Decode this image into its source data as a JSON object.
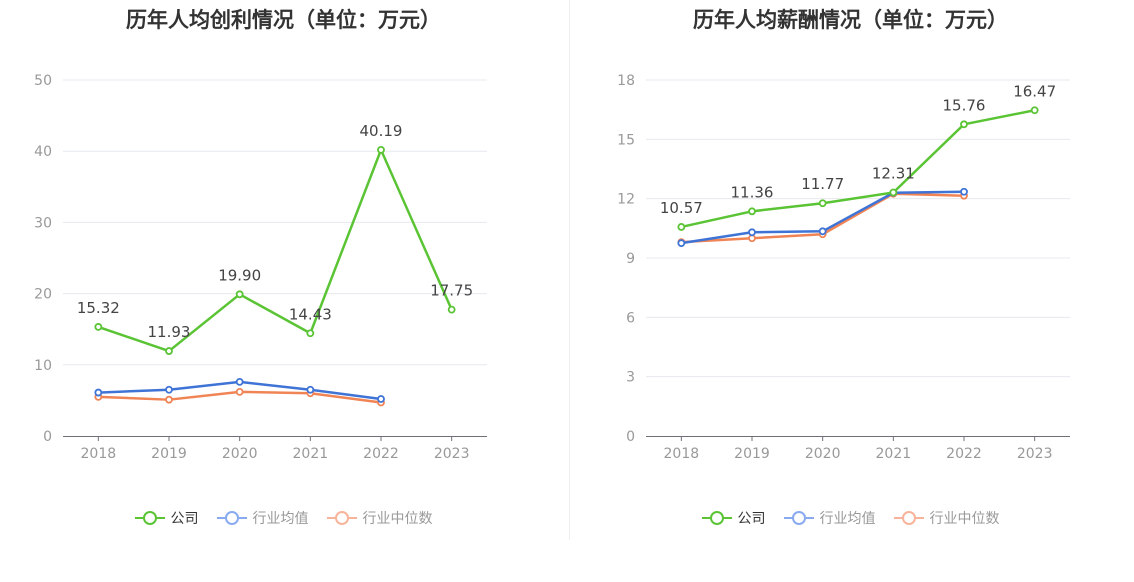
{
  "chart_data": [
    {
      "type": "line",
      "title": "历年人均创利情况（单位：万元）",
      "categories": [
        "2018",
        "2019",
        "2020",
        "2021",
        "2022",
        "2023"
      ],
      "ylim": [
        0,
        50
      ],
      "yticks": [
        0,
        10,
        20,
        30,
        40,
        50
      ],
      "series": [
        {
          "name": "公司",
          "color": "#5ac435",
          "values": [
            15.32,
            11.93,
            19.9,
            14.43,
            40.19,
            17.75
          ],
          "labels": [
            "15.32",
            "11.93",
            "19.90",
            "14.43",
            "40.19",
            "17.75"
          ]
        },
        {
          "name": "行业均值",
          "color": "#3f74d6",
          "values": [
            6.1,
            6.5,
            7.6,
            6.5,
            5.2,
            null
          ]
        },
        {
          "name": "行业中位数",
          "color": "#f08455",
          "values": [
            5.5,
            5.1,
            6.2,
            6.0,
            4.7,
            null
          ]
        }
      ],
      "legend_position": "bottom",
      "grid": true
    },
    {
      "type": "line",
      "title": "历年人均薪酬情况（单位：万元）",
      "categories": [
        "2018",
        "2019",
        "2020",
        "2021",
        "2022",
        "2023"
      ],
      "ylim": [
        0,
        18
      ],
      "yticks": [
        0,
        3,
        6,
        9,
        12,
        15,
        18
      ],
      "series": [
        {
          "name": "公司",
          "color": "#5ac435",
          "values": [
            10.57,
            11.36,
            11.77,
            12.31,
            15.76,
            16.47
          ],
          "labels": [
            "10.57",
            "11.36",
            "11.77",
            "12.31",
            "15.76",
            "16.47"
          ]
        },
        {
          "name": "行业均值",
          "color": "#3f74d6",
          "values": [
            9.75,
            10.3,
            10.35,
            12.3,
            12.35,
            null
          ]
        },
        {
          "name": "行业中位数",
          "color": "#f08455",
          "values": [
            9.8,
            10.0,
            10.2,
            12.25,
            12.15,
            null
          ]
        }
      ],
      "legend_position": "bottom",
      "grid": true
    }
  ],
  "legend": {
    "items": [
      {
        "name": "公司",
        "line_color": "#5ac435",
        "text_color": "#333333"
      },
      {
        "name": "行业均值",
        "line_color": "#8aaaf0",
        "text_color": "#999999"
      },
      {
        "name": "行业中位数",
        "line_color": "#f8b49a",
        "text_color": "#999999"
      }
    ]
  }
}
